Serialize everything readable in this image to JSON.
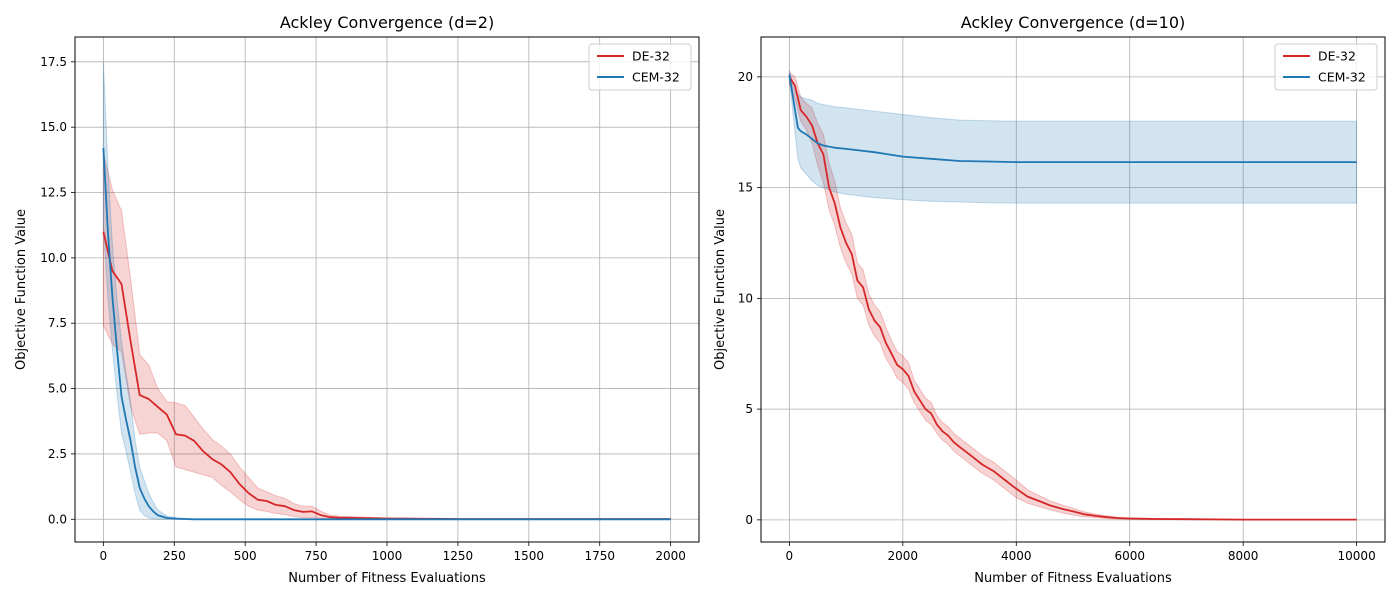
{
  "figure": {
    "colors": {
      "de": "#d62728",
      "cem": "#1f77b4",
      "grid": "#b0b0b0"
    }
  },
  "chart_data": [
    {
      "type": "line",
      "title": "Ackley Convergence (d=2)",
      "xlabel": "Number of Fitness Evaluations",
      "ylabel": "Objective Function Value",
      "xlim": [
        -100,
        2100
      ],
      "ylim": [
        -0.87,
        18.45
      ],
      "xticks": [
        0,
        250,
        500,
        750,
        1000,
        1250,
        1500,
        1750,
        2000
      ],
      "yticks": [
        0.0,
        2.5,
        5.0,
        7.5,
        10.0,
        12.5,
        15.0,
        17.5
      ],
      "ytick_labels": [
        "0.0",
        "2.5",
        "5.0",
        "7.5",
        "10.0",
        "12.5",
        "15.0",
        "17.5"
      ],
      "grid": true,
      "legend": "top-right",
      "series": [
        {
          "name": "DE-32",
          "color": "#d62728",
          "x": [
            0,
            32,
            64,
            96,
            128,
            160,
            192,
            224,
            256,
            288,
            320,
            352,
            384,
            416,
            448,
            480,
            512,
            544,
            576,
            608,
            640,
            672,
            704,
            736,
            768,
            800,
            832,
            900,
            1000,
            1100,
            1250,
            1500,
            1750,
            2000
          ],
          "y": [
            11.0,
            9.5,
            9.0,
            6.8,
            4.75,
            4.6,
            4.3,
            4.0,
            3.25,
            3.2,
            3.0,
            2.6,
            2.3,
            2.1,
            1.8,
            1.35,
            1.0,
            0.75,
            0.7,
            0.55,
            0.5,
            0.35,
            0.28,
            0.3,
            0.15,
            0.08,
            0.06,
            0.05,
            0.03,
            0.02,
            0.01,
            0.01,
            0.01,
            0.01
          ],
          "lower": [
            7.4,
            6.7,
            6.4,
            4.3,
            3.25,
            3.3,
            3.3,
            3.0,
            2.0,
            1.9,
            1.8,
            1.7,
            1.6,
            1.3,
            1.05,
            0.75,
            0.5,
            0.35,
            0.3,
            0.22,
            0.18,
            0.1,
            0.06,
            0.07,
            0.03,
            0.02,
            0.02,
            0.02,
            0.01,
            0.01,
            0.0,
            0.0,
            0.0,
            0.0
          ],
          "upper": [
            14.0,
            12.6,
            11.8,
            9.2,
            6.3,
            5.9,
            5.0,
            4.5,
            4.45,
            4.35,
            3.9,
            3.45,
            3.05,
            2.8,
            2.5,
            2.0,
            1.6,
            1.2,
            1.05,
            0.9,
            0.8,
            0.6,
            0.5,
            0.5,
            0.3,
            0.15,
            0.12,
            0.09,
            0.05,
            0.03,
            0.02,
            0.02,
            0.02,
            0.02
          ]
        },
        {
          "name": "CEM-32",
          "color": "#1f77b4",
          "x": [
            0,
            16,
            32,
            48,
            64,
            80,
            96,
            112,
            128,
            144,
            160,
            176,
            192,
            224,
            256,
            288,
            320,
            400,
            500,
            750,
            1000,
            1250,
            1500,
            1750,
            2000
          ],
          "y": [
            14.2,
            11.0,
            8.5,
            6.5,
            4.7,
            3.8,
            3.0,
            2.0,
            1.2,
            0.8,
            0.5,
            0.3,
            0.15,
            0.05,
            0.02,
            0.01,
            0.0,
            0.0,
            0.0,
            0.0,
            0.0,
            0.0,
            0.0,
            0.0,
            0.0
          ],
          "lower": [
            11.2,
            8.5,
            6.5,
            4.8,
            3.3,
            2.6,
            1.8,
            1.0,
            0.35,
            0.15,
            0.05,
            0.02,
            0.0,
            0.0,
            0.0,
            0.0,
            0.0,
            0.0,
            0.0,
            0.0,
            0.0,
            0.0,
            0.0,
            0.0,
            0.0
          ],
          "upper": [
            17.5,
            13.5,
            10.5,
            8.4,
            6.8,
            5.6,
            4.5,
            3.0,
            2.0,
            1.5,
            1.0,
            0.65,
            0.35,
            0.12,
            0.06,
            0.03,
            0.01,
            0.0,
            0.0,
            0.0,
            0.0,
            0.0,
            0.0,
            0.0,
            0.0
          ]
        }
      ]
    },
    {
      "type": "line",
      "title": "Ackley Convergence (d=10)",
      "xlabel": "Number of Fitness Evaluations",
      "ylabel": "Objective Function Value",
      "xlim": [
        -500,
        10500
      ],
      "ylim": [
        -1.0,
        21.8
      ],
      "xticks": [
        0,
        2000,
        4000,
        6000,
        8000,
        10000
      ],
      "yticks": [
        0,
        5,
        10,
        15,
        20
      ],
      "ytick_labels": [
        "0",
        "5",
        "10",
        "15",
        "20"
      ],
      "grid": true,
      "legend": "top-right",
      "series": [
        {
          "name": "DE-32",
          "color": "#d62728",
          "x": [
            0,
            100,
            200,
            300,
            400,
            500,
            600,
            700,
            800,
            900,
            1000,
            1100,
            1200,
            1300,
            1400,
            1500,
            1600,
            1700,
            1800,
            1900,
            2000,
            2100,
            2200,
            2300,
            2400,
            2500,
            2600,
            2700,
            2800,
            2900,
            3000,
            3200,
            3400,
            3600,
            3800,
            4000,
            4200,
            4400,
            4600,
            4800,
            5000,
            5200,
            5400,
            5600,
            5800,
            6000,
            6500,
            7000,
            7500,
            8000,
            9000,
            10000
          ],
          "y": [
            20.0,
            19.6,
            18.5,
            18.2,
            17.8,
            17.0,
            16.5,
            15.0,
            14.3,
            13.2,
            12.5,
            12.0,
            10.8,
            10.5,
            9.5,
            9.0,
            8.7,
            8.0,
            7.5,
            7.0,
            6.8,
            6.5,
            5.8,
            5.4,
            5.0,
            4.8,
            4.3,
            4.0,
            3.8,
            3.5,
            3.3,
            2.9,
            2.5,
            2.2,
            1.8,
            1.4,
            1.05,
            0.85,
            0.65,
            0.5,
            0.38,
            0.25,
            0.18,
            0.12,
            0.08,
            0.06,
            0.04,
            0.03,
            0.02,
            0.01,
            0.01,
            0.01
          ],
          "lower": [
            19.7,
            19.0,
            18.0,
            17.6,
            17.0,
            16.0,
            15.2,
            14.0,
            13.3,
            12.3,
            11.6,
            11.1,
            10.0,
            9.7,
            8.8,
            8.3,
            8.0,
            7.3,
            6.9,
            6.4,
            6.2,
            5.9,
            5.3,
            4.9,
            4.5,
            4.3,
            3.9,
            3.6,
            3.4,
            3.1,
            2.9,
            2.5,
            2.1,
            1.8,
            1.4,
            1.0,
            0.75,
            0.6,
            0.45,
            0.32,
            0.22,
            0.14,
            0.1,
            0.06,
            0.04,
            0.03,
            0.02,
            0.01,
            0.01,
            0.0,
            0.0,
            0.0
          ],
          "upper": [
            20.2,
            20.0,
            19.1,
            18.8,
            18.6,
            17.9,
            17.4,
            16.1,
            15.3,
            14.1,
            13.4,
            12.9,
            11.6,
            11.3,
            10.2,
            9.7,
            9.4,
            8.7,
            8.1,
            7.6,
            7.4,
            7.1,
            6.3,
            5.9,
            5.5,
            5.3,
            4.7,
            4.4,
            4.2,
            3.9,
            3.7,
            3.3,
            2.9,
            2.6,
            2.2,
            1.8,
            1.35,
            1.1,
            0.85,
            0.68,
            0.52,
            0.36,
            0.26,
            0.18,
            0.12,
            0.09,
            0.06,
            0.05,
            0.03,
            0.02,
            0.02,
            0.02
          ]
        },
        {
          "name": "CEM-32",
          "color": "#1f77b4",
          "x": [
            0,
            100,
            150,
            200,
            300,
            400,
            500,
            600,
            800,
            1000,
            1500,
            2000,
            2500,
            3000,
            3500,
            4000,
            5000,
            6000,
            7000,
            8000,
            9000,
            10000
          ],
          "y": [
            20.1,
            18.5,
            17.7,
            17.55,
            17.4,
            17.2,
            17.0,
            16.9,
            16.8,
            16.75,
            16.6,
            16.4,
            16.3,
            16.2,
            16.18,
            16.15,
            16.15,
            16.15,
            16.15,
            16.15,
            16.15,
            16.15
          ],
          "lower": [
            19.9,
            17.5,
            16.3,
            15.9,
            15.6,
            15.3,
            15.1,
            15.0,
            14.8,
            14.7,
            14.55,
            14.45,
            14.38,
            14.35,
            14.32,
            14.3,
            14.3,
            14.3,
            14.3,
            14.3,
            14.3,
            14.3
          ],
          "upper": [
            20.3,
            19.3,
            19.2,
            19.1,
            19.0,
            18.95,
            18.8,
            18.75,
            18.65,
            18.6,
            18.45,
            18.3,
            18.15,
            18.05,
            18.02,
            18.0,
            18.0,
            18.0,
            18.0,
            18.0,
            18.0,
            18.0
          ]
        }
      ]
    }
  ]
}
